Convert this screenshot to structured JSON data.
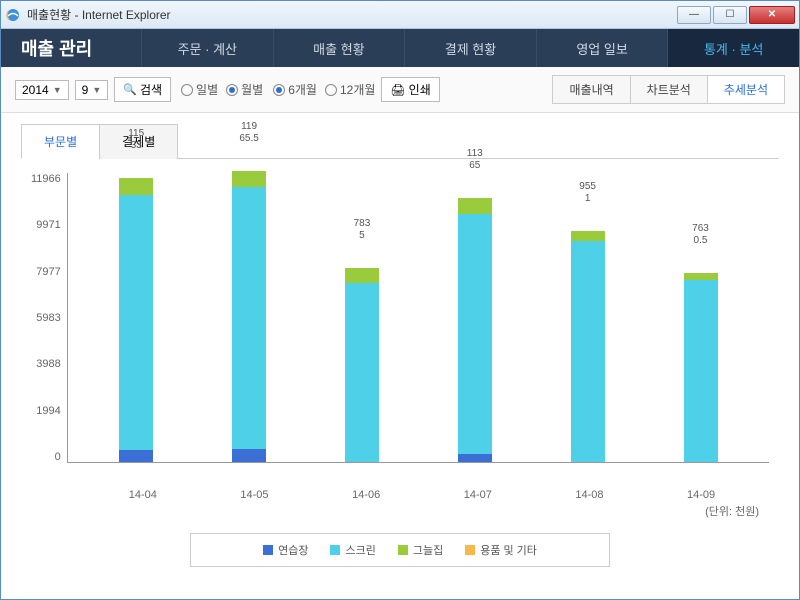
{
  "window": {
    "title": "매출현황 - Internet Explorer"
  },
  "brand": "매출 관리",
  "nav": [
    {
      "label": "주문 · 계산",
      "active": false
    },
    {
      "label": "매출 현황",
      "active": false
    },
    {
      "label": "결제 현황",
      "active": false
    },
    {
      "label": "영업 일보",
      "active": false
    },
    {
      "label": "통계 · 분석",
      "active": true
    }
  ],
  "toolbar": {
    "year": "2014",
    "month": "9",
    "search": "검색",
    "print": "인쇄",
    "radios1": [
      {
        "label": "일별",
        "checked": false
      },
      {
        "label": "월별",
        "checked": true
      }
    ],
    "radios2": [
      {
        "label": "6개월",
        "checked": true
      },
      {
        "label": "12개월",
        "checked": false
      }
    ]
  },
  "right_tabs": [
    {
      "label": "매출내역",
      "active": false
    },
    {
      "label": "차트분석",
      "active": false
    },
    {
      "label": "추세분석",
      "active": true
    }
  ],
  "sub_tabs": [
    {
      "label": "부문별",
      "active": true
    },
    {
      "label": "결제별",
      "active": false
    }
  ],
  "chart": {
    "type": "stacked-bar",
    "y_ticks": [
      "11966",
      "9971",
      "7977",
      "5983",
      "3988",
      "1994",
      "0"
    ],
    "y_max": 11966,
    "unit_label": "(단위: 천원)",
    "series_colors": {
      "practice": "#3b6fd6",
      "screen": "#4dd0e8",
      "shade": "#9acb3c",
      "other": "#f6b94a"
    },
    "categories": [
      {
        "x": "14-04",
        "top_labels": "115\n33",
        "values": {
          "practice": 500,
          "screen": 10500,
          "shade": 700,
          "other": 0
        }
      },
      {
        "x": "14-05",
        "top_labels": "119\n65.5",
        "values": {
          "practice": 550,
          "screen": 10800,
          "shade": 650,
          "other": 0
        }
      },
      {
        "x": "14-06",
        "top_labels": "783\n5",
        "values": {
          "practice": 0,
          "screen": 7400,
          "shade": 600,
          "other": 0
        }
      },
      {
        "x": "14-07",
        "top_labels": "113\n65",
        "values": {
          "practice": 350,
          "screen": 9900,
          "shade": 650,
          "other": 0
        }
      },
      {
        "x": "14-08",
        "top_labels": "955\n1",
        "values": {
          "practice": 0,
          "screen": 9100,
          "shade": 450,
          "other": 0
        }
      },
      {
        "x": "14-09",
        "top_labels": "763\n0.5",
        "values": {
          "practice": 0,
          "screen": 7500,
          "shade": 300,
          "other": 0
        }
      }
    ],
    "legend": [
      {
        "key": "practice",
        "label": "연습장"
      },
      {
        "key": "screen",
        "label": "스크린"
      },
      {
        "key": "shade",
        "label": "그늘집"
      },
      {
        "key": "other",
        "label": "용품 및 기타"
      }
    ]
  }
}
